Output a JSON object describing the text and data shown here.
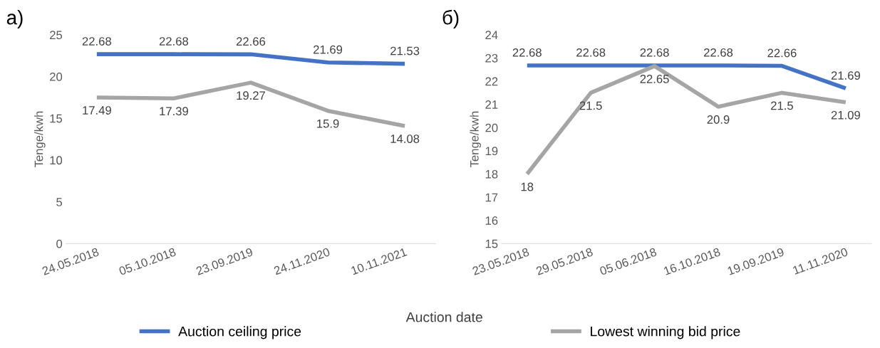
{
  "chart_data": [
    {
      "type": "line",
      "title": "а)",
      "xlabel": "Auction date",
      "ylabel": "Tenge/kwh",
      "legend": "bottom",
      "data_labels": true,
      "grid": false,
      "categories": [
        "24.05.2018",
        "05.10.2018",
        "23.09.2019",
        "24.11.2020",
        "10.11.2021"
      ],
      "ylim": [
        0,
        25
      ],
      "yticks": [
        0,
        5,
        10,
        15,
        20,
        25
      ],
      "series": [
        {
          "name": "Auction ceiling price",
          "color": "#4472c4",
          "values": [
            22.68,
            22.68,
            22.66,
            21.69,
            21.53
          ]
        },
        {
          "name": "Lowest winning bid price",
          "color": "#a5a5a5",
          "values": [
            17.49,
            17.39,
            19.27,
            15.9,
            14.08
          ]
        }
      ]
    },
    {
      "type": "line",
      "title": "б)",
      "ylabel": "Tenge/kwh",
      "data_labels": true,
      "grid": false,
      "categories": [
        "23.05.2018",
        "29.05.2018",
        "05.06.2018",
        "16.10.2018",
        "19.09.2019",
        "11.11.2020"
      ],
      "ylim": [
        15,
        24
      ],
      "yticks": [
        15,
        16,
        17,
        18,
        19,
        20,
        21,
        22,
        23,
        24
      ],
      "series": [
        {
          "color": "#4472c4",
          "values": [
            22.68,
            22.68,
            22.68,
            22.68,
            22.66,
            21.69
          ]
        },
        {
          "color": "#a5a5a5",
          "values": [
            18,
            21.5,
            22.65,
            20.9,
            21.5,
            21.09
          ]
        }
      ]
    }
  ]
}
